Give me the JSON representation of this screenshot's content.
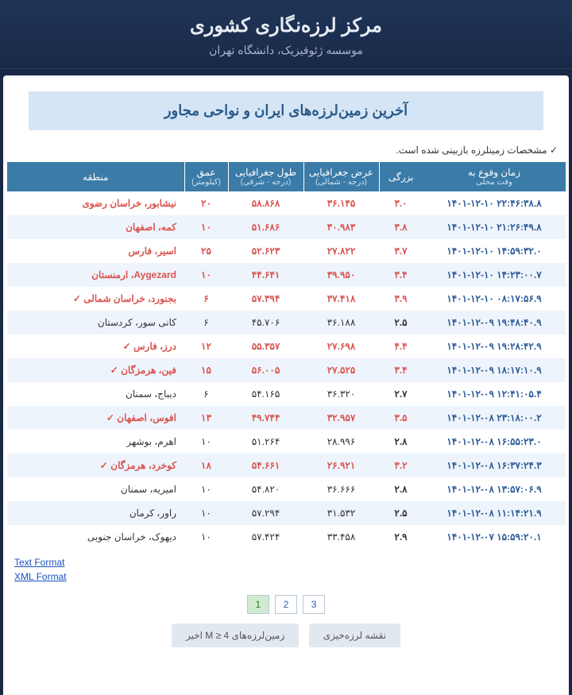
{
  "header": {
    "title": "مرکز لرزه‌نگاری کشوری",
    "subtitle": "موسسه ژئوفیزیک، دانشگاه تهران"
  },
  "banner": "آخرین زمین‌لرزه‌های ایران و نواحی مجاور",
  "note": "✓ مشخصات زمینلرزه بازبینی شده است.",
  "columns": {
    "time": "زمان وقوع به",
    "time_sub": "وقت محلی",
    "mag": "بزرگی",
    "lat": "عرض جغرافیایی",
    "lat_sub": "(درجه - شمالی)",
    "lon": "طول جغرافیایی",
    "lon_sub": "(درجه - شرقی)",
    "depth": "عمق",
    "depth_sub": "(کیلومتر)",
    "region": "منطقه"
  },
  "rows": [
    {
      "hl": true,
      "time": "۱۴۰۱-۱۲-۱۰ ۲۲:۴۶:۳۸.۸",
      "mag": "۳.۰",
      "lat": "۳۶.۱۴۵",
      "lon": "۵۸.۸۶۸",
      "depth": "۲۰",
      "region": "نیشابور، خراسان رضوی"
    },
    {
      "hl": true,
      "time": "۱۴۰۱-۱۲-۱۰ ۲۱:۲۶:۴۹.۸",
      "mag": "۳.۸",
      "lat": "۳۰.۹۸۳",
      "lon": "۵۱.۶۸۶",
      "depth": "۱۰",
      "region": "کمه، اصفهان"
    },
    {
      "hl": true,
      "time": "۱۴۰۱-۱۲-۱۰ ۱۴:۵۹:۳۲.۰",
      "mag": "۳.۷",
      "lat": "۲۷.۸۲۲",
      "lon": "۵۲.۶۲۳",
      "depth": "۲۵",
      "region": "اسیر، فارس"
    },
    {
      "hl": true,
      "time": "۱۴۰۱-۱۲-۱۰ ۱۴:۲۳:۰۰.۷",
      "mag": "۳.۴",
      "lat": "۳۹.۹۵۰",
      "lon": "۴۴.۶۴۱",
      "depth": "۱۰",
      "region": "Aygezard، ارمنستان"
    },
    {
      "hl": true,
      "time": "۱۴۰۱-۱۲-۱۰ ۰۸:۱۷:۵۶.۹",
      "mag": "۳.۹",
      "lat": "۳۷.۴۱۸",
      "lon": "۵۷.۳۹۴",
      "depth": "۶",
      "region": "بجنورد، خراسان شمالی ✓"
    },
    {
      "hl": false,
      "time": "۱۴۰۱-۱۲-۰۹ ۱۹:۴۸:۴۰.۹",
      "mag": "۲.۵",
      "lat": "۳۶.۱۸۸",
      "lon": "۴۵.۷۰۶",
      "depth": "۶",
      "region": "کانی سور، کردستان"
    },
    {
      "hl": true,
      "time": "۱۴۰۱-۱۲-۰۹ ۱۹:۲۸:۴۲.۹",
      "mag": "۴.۴",
      "lat": "۲۷.۶۹۸",
      "lon": "۵۵.۳۵۷",
      "depth": "۱۲",
      "region": "درز، فارس ✓"
    },
    {
      "hl": true,
      "time": "۱۴۰۱-۱۲-۰۹ ۱۸:۱۷:۱۰.۹",
      "mag": "۳.۴",
      "lat": "۲۷.۵۲۵",
      "lon": "۵۶.۰۰۵",
      "depth": "۱۵",
      "region": "فین، هرمزگان ✓"
    },
    {
      "hl": false,
      "time": "۱۴۰۱-۱۲-۰۹ ۱۲:۴۱:۰۵.۴",
      "mag": "۲.۷",
      "lat": "۳۶.۳۲۰",
      "lon": "۵۴.۱۶۵",
      "depth": "۶",
      "region": "دیباج، سمنان"
    },
    {
      "hl": true,
      "time": "۱۴۰۱-۱۲-۰۸ ۲۳:۱۸:۰۰.۲",
      "mag": "۳.۵",
      "lat": "۳۲.۹۵۷",
      "lon": "۴۹.۷۴۴",
      "depth": "۱۳",
      "region": "افوس، اصفهان ✓"
    },
    {
      "hl": false,
      "time": "۱۴۰۱-۱۲-۰۸ ۱۶:۵۵:۲۳.۰",
      "mag": "۲.۸",
      "lat": "۲۸.۹۹۶",
      "lon": "۵۱.۲۶۴",
      "depth": "۱۰",
      "region": "اهرم، بوشهر"
    },
    {
      "hl": true,
      "time": "۱۴۰۱-۱۲-۰۸ ۱۶:۳۷:۲۴.۳",
      "mag": "۳.۲",
      "lat": "۲۶.۹۲۱",
      "lon": "۵۴.۶۶۱",
      "depth": "۱۸",
      "region": "کوخرد، هرمزگان ✓"
    },
    {
      "hl": false,
      "time": "۱۴۰۱-۱۲-۰۸ ۱۳:۵۷:۰۶.۹",
      "mag": "۲.۸",
      "lat": "۳۶.۶۶۶",
      "lon": "۵۴.۸۲۰",
      "depth": "۱۰",
      "region": "امیریه، سمنان"
    },
    {
      "hl": false,
      "time": "۱۴۰۱-۱۲-۰۸ ۱۱:۱۴:۲۱.۹",
      "mag": "۲.۵",
      "lat": "۳۱.۵۳۲",
      "lon": "۵۷.۲۹۴",
      "depth": "۱۰",
      "region": "راور، کرمان"
    },
    {
      "hl": false,
      "time": "۱۴۰۱-۱۲-۰۷ ۱۵:۵۹:۲۰.۱",
      "mag": "۲.۹",
      "lat": "۳۳.۴۵۸",
      "lon": "۵۷.۴۲۴",
      "depth": "۱۰",
      "region": "دیهوک، خراسان جنوبی"
    }
  ],
  "links": {
    "text": "Text Format",
    "xml": "XML Format"
  },
  "pager": [
    "1",
    "2",
    "3"
  ],
  "tabs": {
    "map": "نقشه لرزه‌خیزی",
    "recent": "زمین‌لرزه‌های 4 ≤ M اخیر"
  }
}
